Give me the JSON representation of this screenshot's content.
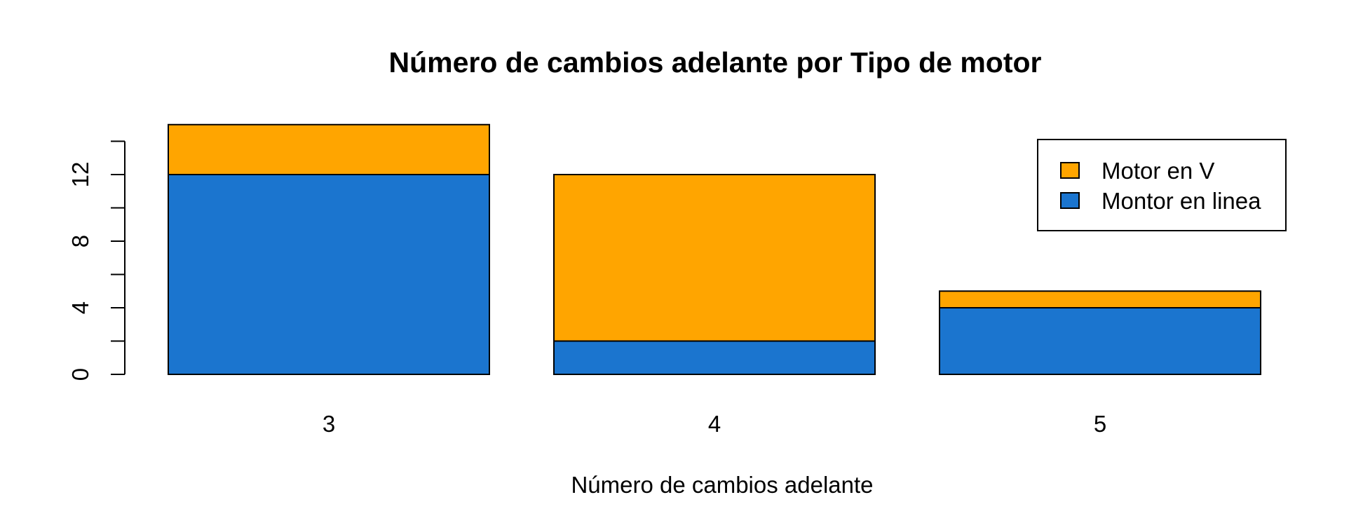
{
  "chart_data": {
    "type": "bar",
    "stacked": true,
    "title": "Número de cambios adelante por Tipo de motor",
    "xlabel": "Número de cambios adelante",
    "ylabel": "",
    "categories": [
      "3",
      "4",
      "5"
    ],
    "series": [
      {
        "name": "Montor en linea",
        "color": "#1B75CF",
        "values": [
          12,
          2,
          4
        ]
      },
      {
        "name": "Motor en V",
        "color": "#FFA500",
        "values": [
          3,
          10,
          1
        ]
      }
    ],
    "ylim": [
      0,
      15
    ],
    "yticks": [
      0,
      4,
      8,
      12
    ],
    "yticks_minor": [
      2,
      6,
      10,
      14
    ],
    "legend": {
      "position": "top-right",
      "entries": [
        "Motor en V",
        "Montor en linea"
      ]
    },
    "grid": false
  }
}
